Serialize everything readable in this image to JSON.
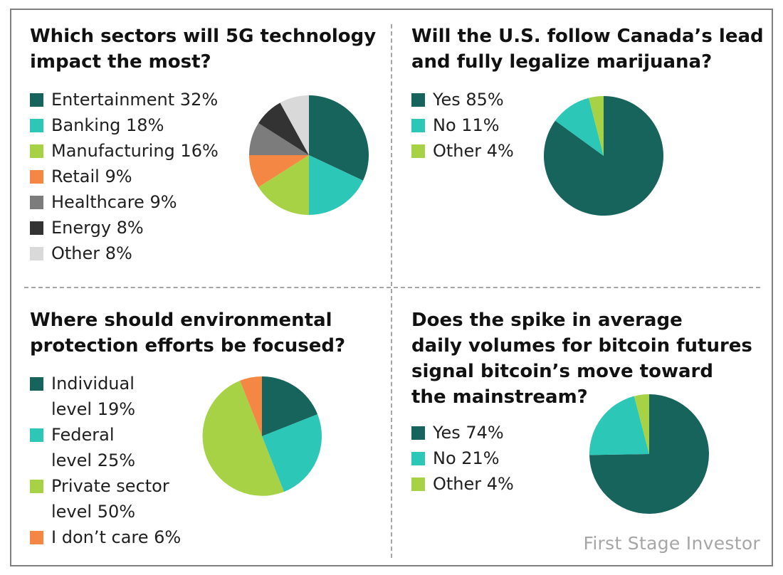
{
  "colors": {
    "dark_teal": "#16645c",
    "turquoise": "#2dc7b7",
    "lime": "#a7d245",
    "orange": "#f58745",
    "gray": "#7c7c7c",
    "charcoal": "#333333",
    "light_gray": "#d9d9d9"
  },
  "credit": "First Stage Investor",
  "chart_data": [
    {
      "type": "pie",
      "title": "Which sectors will 5G technology\nimpact the most?",
      "legend_position": "left",
      "slices": [
        {
          "label": "Entertainment 32%",
          "name": "Entertainment",
          "value": 32,
          "color": "#16645c"
        },
        {
          "label": "Banking 18%",
          "name": "Banking",
          "value": 18,
          "color": "#2dc7b7"
        },
        {
          "label": "Manufacturing 16%",
          "name": "Manufacturing",
          "value": 16,
          "color": "#a7d245"
        },
        {
          "label": "Retail 9%",
          "name": "Retail",
          "value": 9,
          "color": "#f58745"
        },
        {
          "label": "Healthcare 9%",
          "name": "Healthcare",
          "value": 9,
          "color": "#7c7c7c"
        },
        {
          "label": "Energy 8%",
          "name": "Energy",
          "value": 8,
          "color": "#333333"
        },
        {
          "label": "Other 8%",
          "name": "Other",
          "value": 8,
          "color": "#d9d9d9"
        }
      ]
    },
    {
      "type": "pie",
      "title": "Will the U.S. follow Canada’s lead\nand fully legalize marijuana?",
      "legend_position": "left",
      "slices": [
        {
          "label": "Yes 85%",
          "name": "Yes",
          "value": 85,
          "color": "#16645c"
        },
        {
          "label": "No 11%",
          "name": "No",
          "value": 11,
          "color": "#2dc7b7"
        },
        {
          "label": "Other 4%",
          "name": "Other",
          "value": 4,
          "color": "#a7d245"
        }
      ]
    },
    {
      "type": "pie",
      "title": "Where should environmental\nprotection efforts be focused?",
      "legend_position": "left",
      "slices": [
        {
          "label": "Individual\nlevel 19%",
          "name": "Individual level",
          "value": 19,
          "color": "#16645c"
        },
        {
          "label": "Federal\nlevel 25%",
          "name": "Federal level",
          "value": 25,
          "color": "#2dc7b7"
        },
        {
          "label": "Private sector\nlevel 50%",
          "name": "Private sector level",
          "value": 50,
          "color": "#a7d245"
        },
        {
          "label": "I don’t care 6%",
          "name": "I don’t care",
          "value": 6,
          "color": "#f58745"
        }
      ]
    },
    {
      "type": "pie",
      "title": "Does the spike in average\ndaily volumes for bitcoin futures\nsignal bitcoin’s move toward\nthe mainstream?",
      "legend_position": "left",
      "slices": [
        {
          "label": "Yes 74%",
          "name": "Yes",
          "value": 74,
          "color": "#16645c"
        },
        {
          "label": "No 21%",
          "name": "No",
          "value": 21,
          "color": "#2dc7b7"
        },
        {
          "label": "Other 4%",
          "name": "Other",
          "value": 4,
          "color": "#a7d245"
        }
      ]
    }
  ]
}
